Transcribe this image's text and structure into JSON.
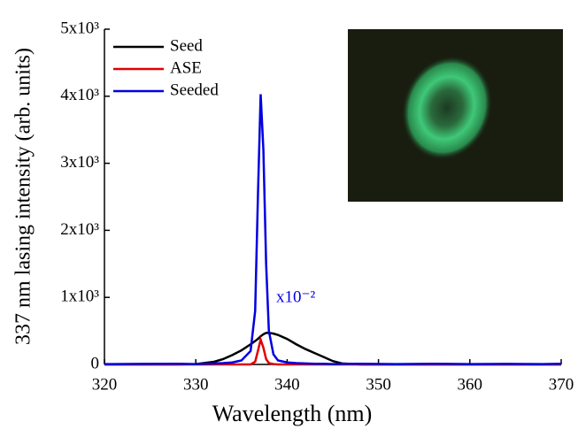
{
  "chart_data": {
    "type": "line",
    "xlabel": "Wavelength (nm)",
    "ylabel": "337 nm lasing intensity (arb. units)",
    "annotation": "x10⁻²",
    "x": [
      320,
      324,
      328,
      330,
      332,
      333,
      334,
      335,
      336,
      336.5,
      336.8,
      337.1,
      337.4,
      337.7,
      338,
      338.5,
      339,
      340,
      341,
      342,
      343,
      344,
      345,
      346,
      348,
      352,
      356,
      360,
      364,
      368,
      370
    ],
    "series": [
      {
        "name": "Seed",
        "color": "#000000",
        "values": [
          0,
          0,
          0,
          5,
          40,
          80,
          140,
          210,
          300,
          350,
          380,
          420,
          450,
          470,
          470,
          460,
          440,
          380,
          300,
          230,
          170,
          110,
          50,
          15,
          0,
          0,
          0,
          0,
          0,
          0,
          0
        ]
      },
      {
        "name": "ASE",
        "color": "#e00000",
        "values": [
          0,
          0,
          0,
          0,
          0,
          0,
          0,
          0,
          0,
          40,
          200,
          370,
          250,
          80,
          20,
          5,
          0,
          0,
          0,
          0,
          0,
          0,
          0,
          0,
          0,
          0,
          0,
          0,
          0,
          0,
          0
        ]
      },
      {
        "name": "Seeded",
        "color": "#0000e0",
        "values": [
          5,
          8,
          10,
          5,
          15,
          20,
          30,
          60,
          200,
          800,
          2500,
          4030,
          3200,
          1500,
          500,
          150,
          60,
          30,
          20,
          15,
          10,
          10,
          5,
          8,
          10,
          5,
          10,
          5,
          8,
          5,
          10
        ]
      }
    ],
    "xlim": [
      320,
      370
    ],
    "xticks": [
      320,
      330,
      340,
      350,
      360,
      370
    ],
    "ylim": [
      0,
      5000
    ],
    "yticks": [
      0,
      {
        "value": 1000,
        "label": "1x10³"
      },
      {
        "value": 2000,
        "label": "2x10³"
      },
      {
        "value": 3000,
        "label": "3x10³"
      },
      {
        "value": 4000,
        "label": "4x10³"
      },
      {
        "value": 5000,
        "label": "5x10³"
      }
    ]
  }
}
